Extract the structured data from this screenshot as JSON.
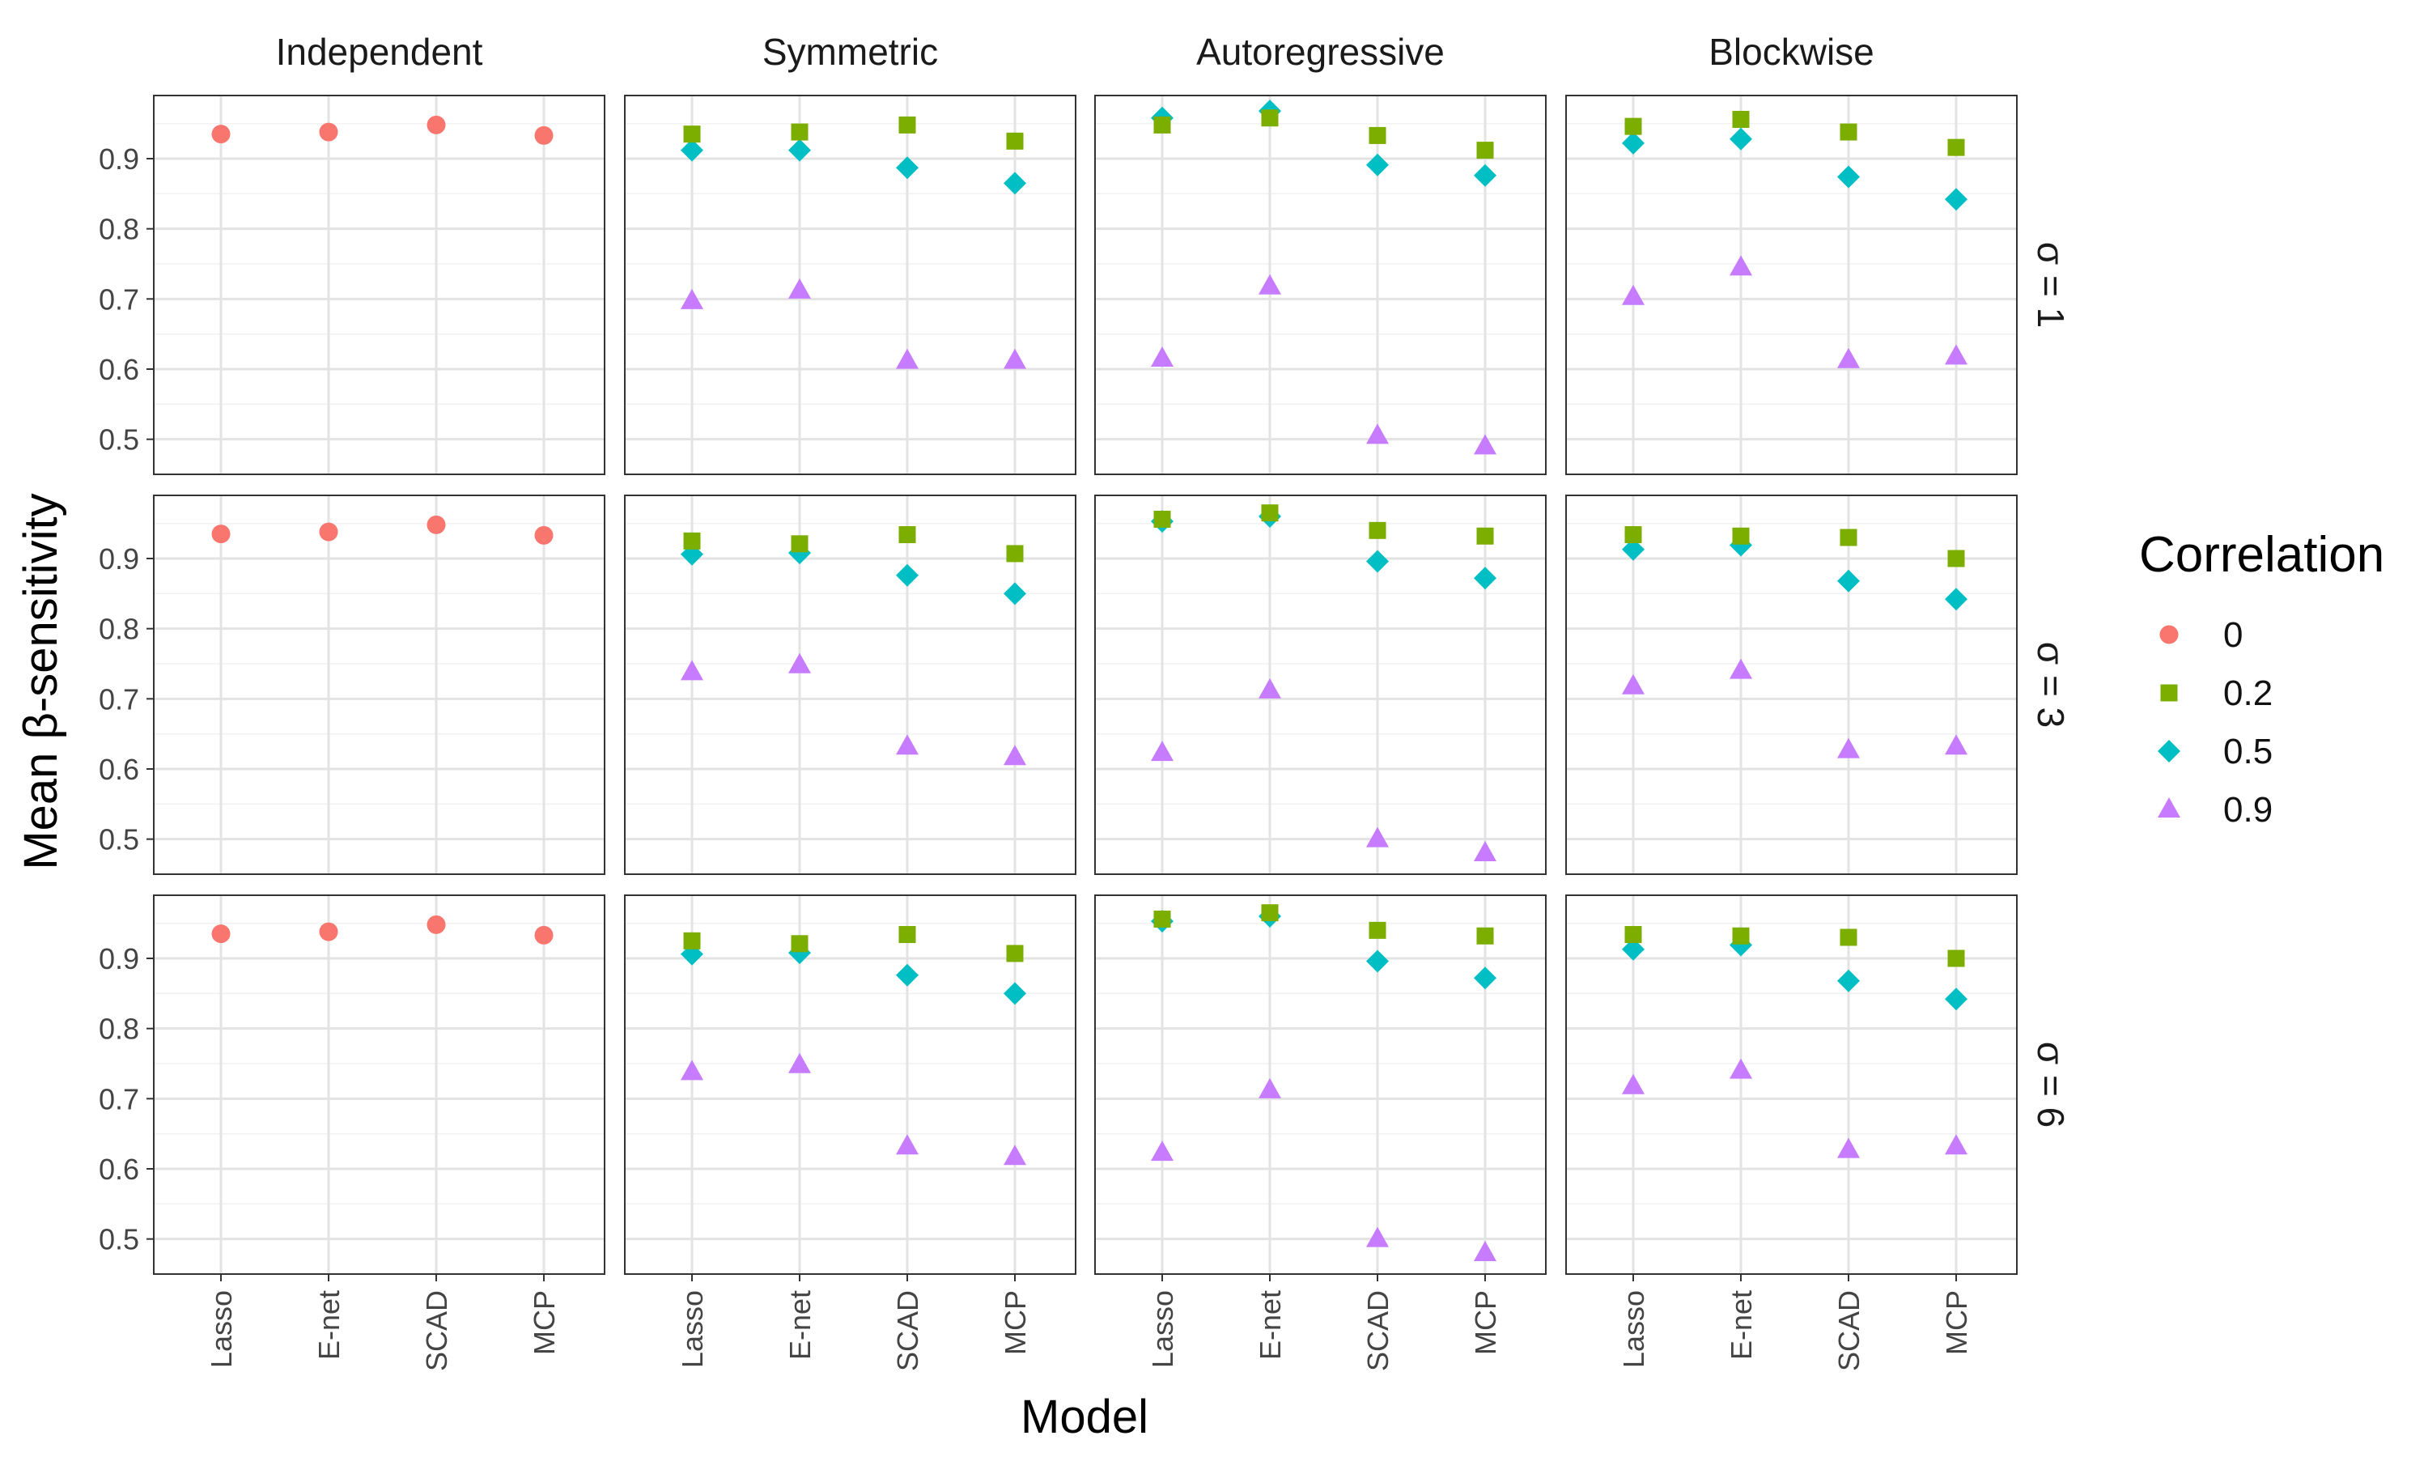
{
  "chart_data": {
    "type": "scatter",
    "xlabel": "Model",
    "ylabel": "Mean β-sensitivity",
    "categories": [
      "Lasso",
      "E-net",
      "SCAD",
      "MCP"
    ],
    "ylim": [
      0.45,
      0.99
    ],
    "yticks": [
      0.5,
      0.6,
      0.7,
      0.8,
      0.9
    ],
    "ytick_labels": [
      "0.5",
      "0.6",
      "0.7",
      "0.8",
      "0.9"
    ],
    "grid": true,
    "facet_columns": [
      "Independent",
      "Symmetric",
      "Autoregressive",
      "Blockwise"
    ],
    "facet_rows": [
      "σ = 1",
      "σ = 3",
      "σ = 6"
    ],
    "legend": {
      "title": "Correlation",
      "placement": "right",
      "entries": [
        {
          "label": "0",
          "color": "#F8766D",
          "shape": "circle"
        },
        {
          "label": "0.2",
          "color": "#7CAE00",
          "shape": "square"
        },
        {
          "label": "0.5",
          "color": "#00BFC4",
          "shape": "diamond"
        },
        {
          "label": "0.9",
          "color": "#C77CFF",
          "shape": "triangle"
        }
      ]
    },
    "panels": [
      {
        "column": "Independent",
        "row": "σ = 1",
        "series": [
          {
            "correlation": "0",
            "values": [
              0.935,
              0.938,
              0.948,
              0.933
            ]
          }
        ]
      },
      {
        "column": "Symmetric",
        "row": "σ = 1",
        "series": [
          {
            "correlation": "0.2",
            "values": [
              0.935,
              0.938,
              0.948,
              0.925
            ]
          },
          {
            "correlation": "0.5",
            "values": [
              0.912,
              0.912,
              0.887,
              0.865
            ]
          },
          {
            "correlation": "0.9",
            "values": [
              0.697,
              0.712,
              0.612,
              0.612
            ]
          }
        ]
      },
      {
        "column": "Autoregressive",
        "row": "σ = 1",
        "series": [
          {
            "correlation": "0.2",
            "values": [
              0.948,
              0.958,
              0.933,
              0.912
            ]
          },
          {
            "correlation": "0.5",
            "values": [
              0.958,
              0.968,
              0.891,
              0.876
            ]
          },
          {
            "correlation": "0.9",
            "values": [
              0.615,
              0.718,
              0.505,
              0.49
            ]
          }
        ]
      },
      {
        "column": "Blockwise",
        "row": "σ = 1",
        "series": [
          {
            "correlation": "0.2",
            "values": [
              0.946,
              0.956,
              0.938,
              0.916
            ]
          },
          {
            "correlation": "0.5",
            "values": [
              0.922,
              0.928,
              0.874,
              0.842
            ]
          },
          {
            "correlation": "0.9",
            "values": [
              0.703,
              0.745,
              0.613,
              0.618
            ]
          }
        ]
      },
      {
        "column": "Independent",
        "row": "σ = 3",
        "series": [
          {
            "correlation": "0",
            "values": [
              0.935,
              0.938,
              0.948,
              0.933
            ]
          }
        ]
      },
      {
        "column": "Symmetric",
        "row": "σ = 3",
        "series": [
          {
            "correlation": "0.2",
            "values": [
              0.925,
              0.921,
              0.934,
              0.907
            ]
          },
          {
            "correlation": "0.5",
            "values": [
              0.906,
              0.908,
              0.876,
              0.85
            ]
          },
          {
            "correlation": "0.9",
            "values": [
              0.738,
              0.748,
              0.632,
              0.617
            ]
          }
        ]
      },
      {
        "column": "Autoregressive",
        "row": "σ = 3",
        "series": [
          {
            "correlation": "0.2",
            "values": [
              0.956,
              0.965,
              0.94,
              0.932
            ]
          },
          {
            "correlation": "0.5",
            "values": [
              0.953,
              0.96,
              0.896,
              0.872
            ]
          },
          {
            "correlation": "0.9",
            "values": [
              0.623,
              0.712,
              0.5,
              0.48
            ]
          }
        ]
      },
      {
        "column": "Blockwise",
        "row": "σ = 3",
        "series": [
          {
            "correlation": "0.2",
            "values": [
              0.934,
              0.932,
              0.93,
              0.9
            ]
          },
          {
            "correlation": "0.5",
            "values": [
              0.913,
              0.919,
              0.868,
              0.842
            ]
          },
          {
            "correlation": "0.9",
            "values": [
              0.718,
              0.74,
              0.627,
              0.632
            ]
          }
        ]
      },
      {
        "column": "Independent",
        "row": "σ = 6",
        "series": [
          {
            "correlation": "0",
            "values": [
              0.935,
              0.938,
              0.948,
              0.933
            ]
          }
        ]
      },
      {
        "column": "Symmetric",
        "row": "σ = 6",
        "series": [
          {
            "correlation": "0.2",
            "values": [
              0.925,
              0.921,
              0.934,
              0.907
            ]
          },
          {
            "correlation": "0.5",
            "values": [
              0.906,
              0.908,
              0.876,
              0.85
            ]
          },
          {
            "correlation": "0.9",
            "values": [
              0.738,
              0.748,
              0.632,
              0.617
            ]
          }
        ]
      },
      {
        "column": "Autoregressive",
        "row": "σ = 6",
        "series": [
          {
            "correlation": "0.2",
            "values": [
              0.956,
              0.965,
              0.94,
              0.932
            ]
          },
          {
            "correlation": "0.5",
            "values": [
              0.953,
              0.96,
              0.896,
              0.872
            ]
          },
          {
            "correlation": "0.9",
            "values": [
              0.623,
              0.712,
              0.5,
              0.48
            ]
          }
        ]
      },
      {
        "column": "Blockwise",
        "row": "σ = 6",
        "series": [
          {
            "correlation": "0.2",
            "values": [
              0.934,
              0.932,
              0.93,
              0.9
            ]
          },
          {
            "correlation": "0.5",
            "values": [
              0.913,
              0.919,
              0.868,
              0.842
            ]
          },
          {
            "correlation": "0.9",
            "values": [
              0.718,
              0.74,
              0.627,
              0.632
            ]
          }
        ]
      }
    ]
  }
}
